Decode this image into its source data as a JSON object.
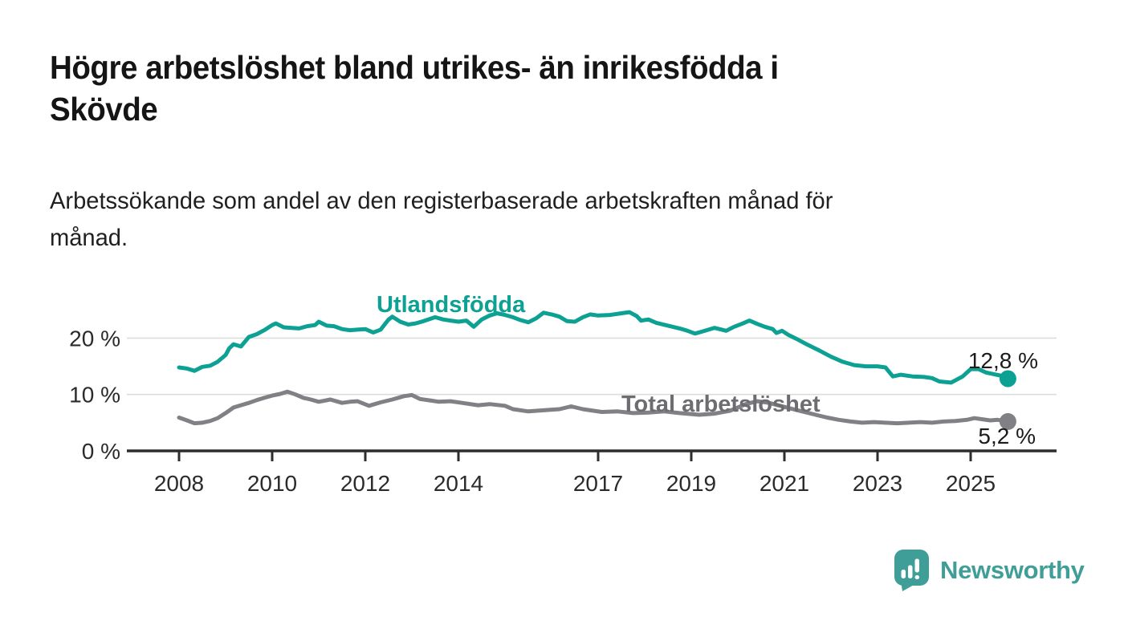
{
  "header": {
    "title_line1": "Högre arbetslöshet bland utrikes- än inrikesfödda i",
    "title_line2": "Skövde",
    "subtitle_line1": "Arbetssökande som andel av den registerbaserade arbetskraften månad för",
    "subtitle_line2": "månad."
  },
  "chart_data": {
    "type": "line",
    "title": "Högre arbetslöshet bland utrikes- än inrikesfödda i Skövde",
    "subtitle": "Arbetssökande som andel av den registerbaserade arbetskraften månad för månad.",
    "xlabel": "",
    "ylabel": "",
    "grid": true,
    "legend": "direct-labels-on-lines",
    "x_axis": {
      "ticks": [
        2008,
        2010,
        2012,
        2014,
        2017,
        2019,
        2021,
        2023,
        2025
      ],
      "range": [
        2008,
        2025.8
      ]
    },
    "y_axis": {
      "ticks": [
        {
          "value": 0,
          "label": "0 %"
        },
        {
          "value": 10,
          "label": "10 %"
        },
        {
          "value": 20,
          "label": "20 %"
        }
      ],
      "range": [
        0,
        26
      ]
    },
    "style": {
      "axis_color": "#2d2d2d",
      "grid_color": "#dcdcdc"
    },
    "series": [
      {
        "name": "Utlandsfödda",
        "color": "#0ca192",
        "end_label": "12,8 %",
        "end_value": 12.8,
        "points": [
          [
            2008.0,
            14.8
          ],
          [
            2008.17,
            14.6
          ],
          [
            2008.33,
            14.2
          ],
          [
            2008.5,
            14.9
          ],
          [
            2008.67,
            15.1
          ],
          [
            2008.83,
            15.8
          ],
          [
            2009.0,
            17.0
          ],
          [
            2009.08,
            18.2
          ],
          [
            2009.17,
            18.9
          ],
          [
            2009.33,
            18.5
          ],
          [
            2009.5,
            20.2
          ],
          [
            2009.67,
            20.7
          ],
          [
            2009.83,
            21.4
          ],
          [
            2010.0,
            22.3
          ],
          [
            2010.08,
            22.6
          ],
          [
            2010.25,
            21.9
          ],
          [
            2010.42,
            21.8
          ],
          [
            2010.58,
            21.7
          ],
          [
            2010.75,
            22.1
          ],
          [
            2010.92,
            22.3
          ],
          [
            2011.0,
            22.9
          ],
          [
            2011.17,
            22.2
          ],
          [
            2011.33,
            22.1
          ],
          [
            2011.5,
            21.6
          ],
          [
            2011.67,
            21.4
          ],
          [
            2011.83,
            21.5
          ],
          [
            2012.0,
            21.6
          ],
          [
            2012.17,
            21.0
          ],
          [
            2012.33,
            21.5
          ],
          [
            2012.5,
            23.3
          ],
          [
            2012.58,
            23.8
          ],
          [
            2012.75,
            22.9
          ],
          [
            2012.92,
            22.4
          ],
          [
            2013.08,
            22.6
          ],
          [
            2013.25,
            23.0
          ],
          [
            2013.5,
            23.7
          ],
          [
            2013.67,
            23.3
          ],
          [
            2013.83,
            23.1
          ],
          [
            2014.0,
            22.9
          ],
          [
            2014.17,
            23.1
          ],
          [
            2014.33,
            22.0
          ],
          [
            2014.5,
            23.3
          ],
          [
            2014.67,
            24.0
          ],
          [
            2014.83,
            24.4
          ],
          [
            2015.0,
            24.1
          ],
          [
            2015.17,
            23.7
          ],
          [
            2015.33,
            23.2
          ],
          [
            2015.5,
            22.8
          ],
          [
            2015.67,
            23.5
          ],
          [
            2015.83,
            24.5
          ],
          [
            2016.0,
            24.2
          ],
          [
            2016.17,
            23.8
          ],
          [
            2016.33,
            23.0
          ],
          [
            2016.5,
            22.9
          ],
          [
            2016.67,
            23.7
          ],
          [
            2016.83,
            24.2
          ],
          [
            2017.0,
            24.0
          ],
          [
            2017.25,
            24.1
          ],
          [
            2017.5,
            24.4
          ],
          [
            2017.67,
            24.6
          ],
          [
            2017.83,
            23.9
          ],
          [
            2017.92,
            23.1
          ],
          [
            2018.08,
            23.3
          ],
          [
            2018.25,
            22.7
          ],
          [
            2018.5,
            22.2
          ],
          [
            2018.75,
            21.7
          ],
          [
            2018.92,
            21.3
          ],
          [
            2019.08,
            20.8
          ],
          [
            2019.25,
            21.2
          ],
          [
            2019.5,
            21.8
          ],
          [
            2019.75,
            21.3
          ],
          [
            2019.92,
            22.0
          ],
          [
            2020.08,
            22.5
          ],
          [
            2020.25,
            23.1
          ],
          [
            2020.42,
            22.5
          ],
          [
            2020.58,
            22.0
          ],
          [
            2020.75,
            21.6
          ],
          [
            2020.83,
            20.9
          ],
          [
            2020.95,
            21.3
          ],
          [
            2021.08,
            20.6
          ],
          [
            2021.25,
            19.9
          ],
          [
            2021.5,
            18.8
          ],
          [
            2021.75,
            17.8
          ],
          [
            2022.0,
            16.7
          ],
          [
            2022.25,
            15.8
          ],
          [
            2022.5,
            15.2
          ],
          [
            2022.75,
            15.0
          ],
          [
            2023.0,
            15.0
          ],
          [
            2023.17,
            14.8
          ],
          [
            2023.33,
            13.2
          ],
          [
            2023.5,
            13.5
          ],
          [
            2023.75,
            13.2
          ],
          [
            2024.0,
            13.1
          ],
          [
            2024.17,
            12.9
          ],
          [
            2024.33,
            12.3
          ],
          [
            2024.58,
            12.1
          ],
          [
            2024.83,
            13.2
          ],
          [
            2025.0,
            14.5
          ],
          [
            2025.17,
            14.5
          ],
          [
            2025.33,
            13.9
          ],
          [
            2025.5,
            13.6
          ],
          [
            2025.67,
            13.3
          ],
          [
            2025.8,
            12.8
          ]
        ]
      },
      {
        "name": "Total arbetslöshet",
        "color": "#808085",
        "end_label": "5,2 %",
        "end_value": 5.2,
        "points": [
          [
            2008.0,
            5.9
          ],
          [
            2008.17,
            5.4
          ],
          [
            2008.33,
            4.9
          ],
          [
            2008.5,
            5.0
          ],
          [
            2008.67,
            5.3
          ],
          [
            2008.83,
            5.8
          ],
          [
            2009.0,
            6.7
          ],
          [
            2009.17,
            7.7
          ],
          [
            2009.33,
            8.1
          ],
          [
            2009.5,
            8.5
          ],
          [
            2009.67,
            9.0
          ],
          [
            2009.83,
            9.4
          ],
          [
            2010.0,
            9.8
          ],
          [
            2010.17,
            10.1
          ],
          [
            2010.33,
            10.5
          ],
          [
            2010.5,
            10.0
          ],
          [
            2010.67,
            9.4
          ],
          [
            2010.83,
            9.1
          ],
          [
            2011.0,
            8.7
          ],
          [
            2011.25,
            9.1
          ],
          [
            2011.5,
            8.5
          ],
          [
            2011.67,
            8.7
          ],
          [
            2011.83,
            8.8
          ],
          [
            2012.08,
            8.0
          ],
          [
            2012.33,
            8.6
          ],
          [
            2012.58,
            9.1
          ],
          [
            2012.83,
            9.7
          ],
          [
            2013.0,
            9.9
          ],
          [
            2013.17,
            9.2
          ],
          [
            2013.42,
            8.9
          ],
          [
            2013.58,
            8.7
          ],
          [
            2013.83,
            8.8
          ],
          [
            2014.08,
            8.5
          ],
          [
            2014.42,
            8.1
          ],
          [
            2014.67,
            8.3
          ],
          [
            2015.0,
            8.0
          ],
          [
            2015.17,
            7.4
          ],
          [
            2015.5,
            7.0
          ],
          [
            2015.83,
            7.2
          ],
          [
            2016.17,
            7.4
          ],
          [
            2016.42,
            7.9
          ],
          [
            2016.67,
            7.4
          ],
          [
            2017.08,
            6.9
          ],
          [
            2017.42,
            7.0
          ],
          [
            2017.75,
            6.7
          ],
          [
            2018.08,
            6.8
          ],
          [
            2018.42,
            7.0
          ],
          [
            2018.75,
            6.7
          ],
          [
            2019.17,
            6.4
          ],
          [
            2019.5,
            6.6
          ],
          [
            2019.83,
            7.1
          ],
          [
            2020.17,
            8.3
          ],
          [
            2020.42,
            8.8
          ],
          [
            2020.67,
            8.5
          ],
          [
            2021.0,
            7.8
          ],
          [
            2021.33,
            7.1
          ],
          [
            2021.67,
            6.4
          ],
          [
            2021.92,
            5.9
          ],
          [
            2022.17,
            5.5
          ],
          [
            2022.42,
            5.2
          ],
          [
            2022.67,
            5.0
          ],
          [
            2022.92,
            5.1
          ],
          [
            2023.17,
            5.0
          ],
          [
            2023.42,
            4.9
          ],
          [
            2023.67,
            5.0
          ],
          [
            2023.92,
            5.1
          ],
          [
            2024.17,
            5.0
          ],
          [
            2024.42,
            5.2
          ],
          [
            2024.67,
            5.3
          ],
          [
            2024.92,
            5.5
          ],
          [
            2025.08,
            5.8
          ],
          [
            2025.25,
            5.6
          ],
          [
            2025.42,
            5.4
          ],
          [
            2025.58,
            5.5
          ],
          [
            2025.8,
            5.2
          ]
        ]
      }
    ]
  },
  "branding": {
    "logo_text": "Newsworthy",
    "logo_color": "#3f9e97",
    "logo_icon": "bar-chart-speech-bubble"
  }
}
